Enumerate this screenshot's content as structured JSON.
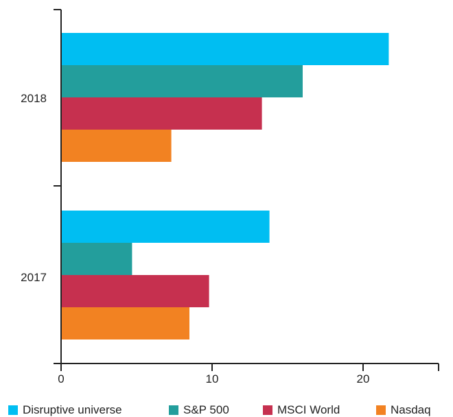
{
  "chart_data": {
    "type": "bar",
    "orientation": "horizontal",
    "categories": [
      "2018",
      "2017"
    ],
    "series": [
      {
        "name": "Disruptive universe",
        "color": "#00BEF2",
        "values": [
          21.7,
          13.8
        ]
      },
      {
        "name": "S&P 500",
        "color": "#239E9C",
        "values": [
          16.0,
          4.7
        ]
      },
      {
        "name": "MSCI World",
        "color": "#C6304F",
        "values": [
          13.3,
          9.8
        ]
      },
      {
        "name": "Nasdaq",
        "color": "#F28222",
        "values": [
          7.3,
          8.5
        ]
      }
    ],
    "x_ticks": [
      "0",
      "10",
      "20"
    ],
    "xlim": [
      0,
      25
    ],
    "title": "",
    "xlabel": "",
    "ylabel": "",
    "grid": false,
    "legend_position": "bottom"
  }
}
